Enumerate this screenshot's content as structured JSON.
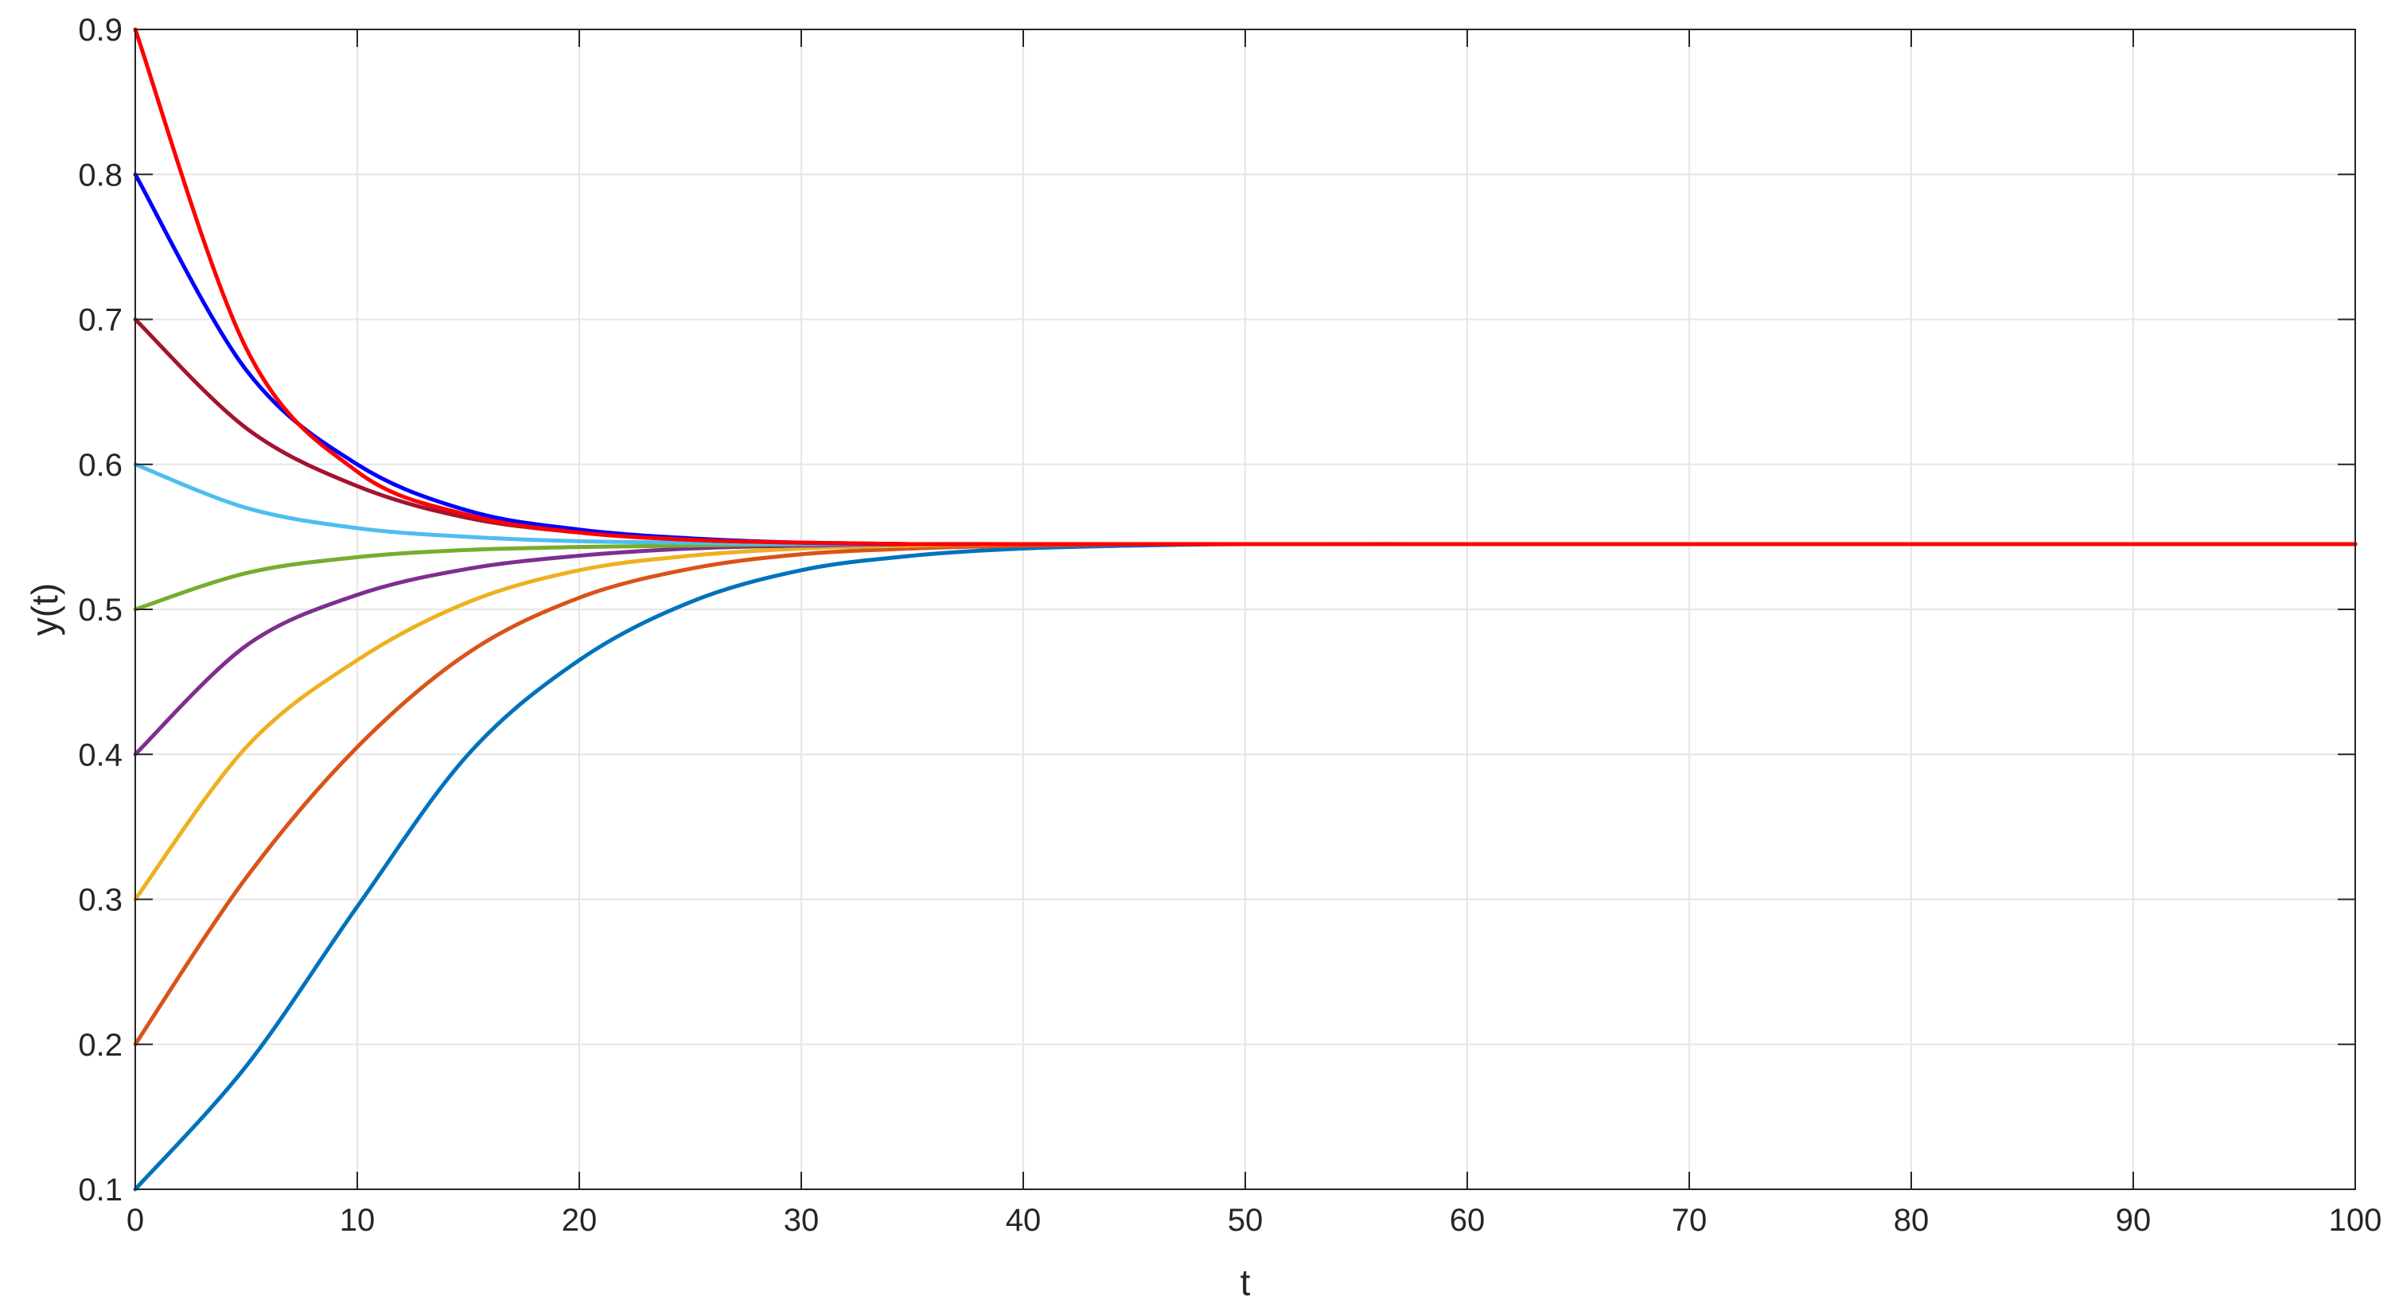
{
  "chart_data": {
    "type": "line",
    "title": "",
    "xlabel": "t",
    "ylabel": "y(t)",
    "xlim": [
      0,
      100
    ],
    "ylim": [
      0.1,
      0.9
    ],
    "xticks": [
      0,
      10,
      20,
      30,
      40,
      50,
      60,
      70,
      80,
      90,
      100
    ],
    "yticks": [
      0.1,
      0.2,
      0.3,
      0.4,
      0.5,
      0.6,
      0.7,
      0.8,
      0.9
    ],
    "xtick_labels": [
      "0",
      "10",
      "20",
      "30",
      "40",
      "50",
      "60",
      "70",
      "80",
      "90",
      "100"
    ],
    "ytick_labels": [
      "0.1",
      "0.2",
      "0.3",
      "0.4",
      "0.5",
      "0.6",
      "0.7",
      "0.8",
      "0.9"
    ],
    "grid": true,
    "legend": "none",
    "series": [
      {
        "color": "#0072BD",
        "x": [
          0,
          5,
          10,
          15,
          20,
          25,
          30,
          35,
          40,
          45,
          50,
          60,
          70,
          80,
          90,
          100
        ],
        "y": [
          0.1,
          0.185,
          0.295,
          0.4,
          0.465,
          0.505,
          0.527,
          0.537,
          0.542,
          0.544,
          0.545,
          0.545,
          0.545,
          0.545,
          0.545,
          0.545
        ]
      },
      {
        "color": "#D95319",
        "x": [
          0,
          5,
          10,
          15,
          20,
          25,
          30,
          35,
          40,
          45,
          50,
          60,
          70,
          80,
          90,
          100
        ],
        "y": [
          0.2,
          0.315,
          0.405,
          0.47,
          0.508,
          0.528,
          0.538,
          0.542,
          0.544,
          0.545,
          0.545,
          0.545,
          0.545,
          0.545,
          0.545,
          0.545
        ]
      },
      {
        "color": "#EDB120",
        "x": [
          0,
          5,
          10,
          15,
          20,
          25,
          30,
          35,
          40,
          45,
          50,
          60,
          70,
          80,
          90,
          100
        ],
        "y": [
          0.3,
          0.405,
          0.465,
          0.505,
          0.527,
          0.537,
          0.542,
          0.544,
          0.545,
          0.545,
          0.545,
          0.545,
          0.545,
          0.545,
          0.545,
          0.545
        ]
      },
      {
        "color": "#7E2F8E",
        "x": [
          0,
          5,
          10,
          15,
          20,
          25,
          30,
          35,
          40,
          45,
          50,
          60,
          70,
          80,
          90,
          100
        ],
        "y": [
          0.4,
          0.475,
          0.51,
          0.528,
          0.537,
          0.542,
          0.544,
          0.545,
          0.545,
          0.545,
          0.545,
          0.545,
          0.545,
          0.545,
          0.545,
          0.545
        ]
      },
      {
        "color": "#77AC30",
        "x": [
          0,
          5,
          10,
          15,
          20,
          25,
          30,
          35,
          40,
          45,
          50,
          60,
          70,
          80,
          90,
          100
        ],
        "y": [
          0.5,
          0.525,
          0.536,
          0.541,
          0.543,
          0.544,
          0.545,
          0.545,
          0.545,
          0.545,
          0.545,
          0.545,
          0.545,
          0.545,
          0.545,
          0.545
        ]
      },
      {
        "color": "#4DBEEE",
        "x": [
          0,
          5,
          10,
          15,
          20,
          25,
          30,
          35,
          40,
          45,
          50,
          60,
          70,
          80,
          90,
          100
        ],
        "y": [
          0.6,
          0.57,
          0.556,
          0.55,
          0.547,
          0.546,
          0.545,
          0.545,
          0.545,
          0.545,
          0.545,
          0.545,
          0.545,
          0.545,
          0.545,
          0.545
        ]
      },
      {
        "color": "#A2142F",
        "x": [
          0,
          5,
          10,
          15,
          20,
          25,
          30,
          35,
          40,
          45,
          50,
          60,
          70,
          80,
          90,
          100
        ],
        "y": [
          0.7,
          0.625,
          0.585,
          0.563,
          0.553,
          0.548,
          0.546,
          0.545,
          0.545,
          0.545,
          0.545,
          0.545,
          0.545,
          0.545,
          0.545,
          0.545
        ]
      },
      {
        "color": "#0000FF",
        "x": [
          0,
          5,
          10,
          15,
          20,
          25,
          30,
          35,
          40,
          45,
          50,
          60,
          70,
          80,
          90,
          100
        ],
        "y": [
          0.8,
          0.665,
          0.6,
          0.568,
          0.555,
          0.549,
          0.546,
          0.545,
          0.545,
          0.545,
          0.545,
          0.545,
          0.545,
          0.545,
          0.545,
          0.545
        ]
      },
      {
        "color": "#FF0000",
        "x": [
          0,
          5,
          10,
          15,
          20,
          25,
          30,
          35,
          40,
          45,
          50,
          60,
          70,
          80,
          90,
          100
        ],
        "y": [
          0.9,
          0.68,
          0.595,
          0.565,
          0.553,
          0.548,
          0.546,
          0.545,
          0.545,
          0.545,
          0.545,
          0.545,
          0.545,
          0.545,
          0.545,
          0.545
        ]
      }
    ]
  }
}
